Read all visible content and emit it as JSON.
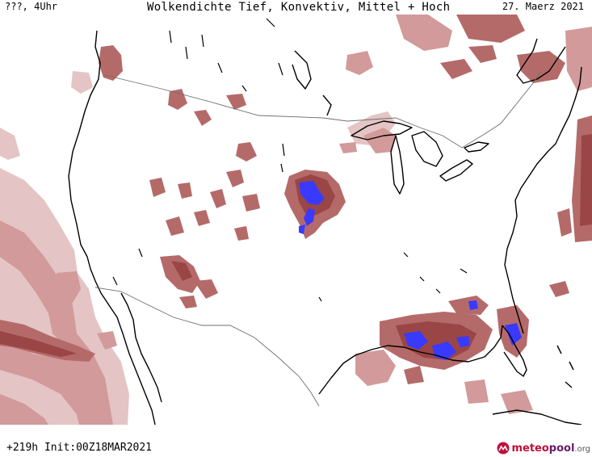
{
  "header": {
    "left": "???, 4Uhr",
    "title": "Wolkendichte  Tief, Konvektiv, Mittel + Hoch",
    "date": "27. Maerz 2021"
  },
  "footer": {
    "run_info": "+219h  Init:00Z18MAR2021",
    "logo_meteo": "meteo",
    "logo_pool": "pool",
    "logo_org": ".org"
  },
  "colors": {
    "cloud_light": "#e4c4c4",
    "cloud_mid": "#d29a9a",
    "cloud_dense": "#b56a6a",
    "cloud_very_dense": "#9a4646",
    "cloud_max": "#3a3aff",
    "coastline": "#000000",
    "border": "#6e6e6e"
  }
}
